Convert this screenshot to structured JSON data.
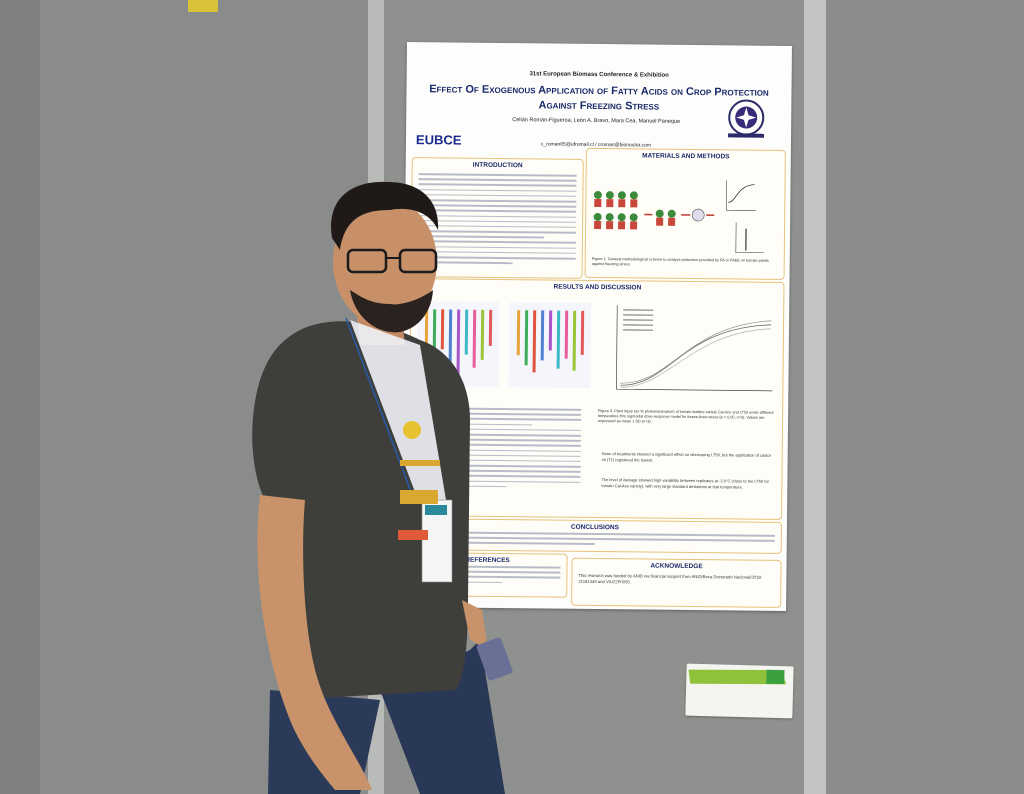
{
  "scene": {
    "description_colors": {
      "background_board": "#8c8e8c",
      "poster_border": "#e6c27a",
      "poster_text": "#1b2a6b"
    }
  },
  "poster": {
    "conference": "31st European Biomass Conference & Exhibition",
    "title_line1": "Effect Of Exogenous Application of Fatty Acids on Crop Protection",
    "title_line2": "Against Freezing Stress",
    "authors": "Celián Román-Figueroa, León A. Bravo, Mara Cea, Manuel Paneque",
    "email": "c_roman05@ufromail.cl / croman@bionostra.com",
    "logo": "EUBCE",
    "sections": {
      "introduction": "INTRODUCTION",
      "materials": "MATERIALS AND METHODS",
      "results": "RESULTS AND DISCUSSION",
      "conclusions": "CONCLUSIONS",
      "references": "REFERENCES",
      "acknowledge": "ACKNOWLEDGE"
    },
    "figure1_caption": "Figure 1. General methodological scheme to analyze protection provided by FA or FAEE on tomato plants against freezing stress.",
    "figure3_caption": "Figure 3. Plant injury (as % photoinactivation) of tomato leaflets variety Cal-Ace and LT50 under different temperature thru sigmoidal dose-response model for freeze-thaw stress (p < 0.05; n=3). Values are expressed as mean ± SD (n=3).",
    "results_text_1": "None of treatments showed a significant effect on decreasing LT50, but the application of castor oil (T1) registered the lowest.",
    "results_text_2": "The level of damage showed high variability between replicates at -3.0°C (close to the LT50 for tomato Cal-Ace variety), with very large standard deviations at that temperature.",
    "ack_text": "This research was funded by ANID via financial support from ANID/Beca Doctorado Nacional/2018-21181349 and VIU22P0055."
  }
}
